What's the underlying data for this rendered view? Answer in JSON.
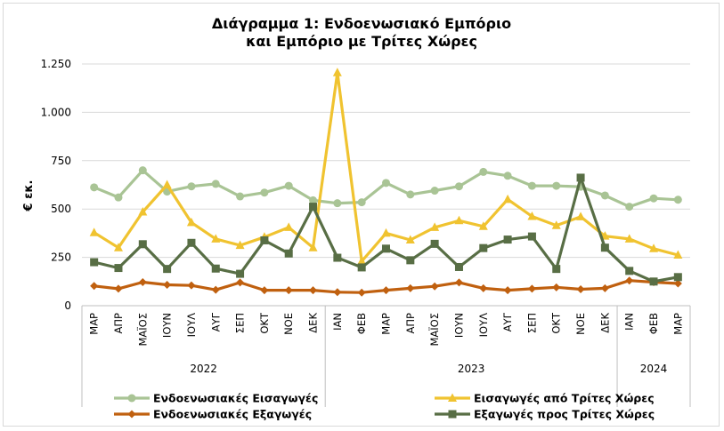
{
  "chart_data": {
    "type": "line",
    "title": [
      "Διάγραμμα 1: Ενδοενωσιακό Εμπόριο",
      "και Εμπόριο με Τρίτες Χώρες"
    ],
    "ylabel": "€ εκ.",
    "ylim": [
      0,
      1250
    ],
    "yticks": [
      0,
      250,
      500,
      750,
      1000,
      1250
    ],
    "ytick_labels": [
      "0",
      "250",
      "500",
      "750",
      "1.000",
      "1.250"
    ],
    "categories": [
      "ΜΑΡ",
      "ΑΠΡ",
      "ΜΑΪΟΣ",
      "ΙΟΥΝ",
      "ΙΟΥΛ",
      "ΑΥΓ",
      "ΣΕΠ",
      "ΟΚΤ",
      "ΝΟΕ",
      "ΔΕΚ",
      "ΙΑΝ",
      "ΦΕΒ",
      "ΜΑΡ",
      "ΑΠΡ",
      "ΜΑΪΟΣ",
      "ΙΟΥΝ",
      "ΙΟΥΛ",
      "ΑΥΓ",
      "ΣΕΠ",
      "ΟΚΤ",
      "ΝΟΕ",
      "ΔΕΚ",
      "ΙΑΝ",
      "ΦΕΒ",
      "ΜΑΡ"
    ],
    "years": [
      {
        "label": "2022",
        "start": 0,
        "end": 9
      },
      {
        "label": "2023",
        "start": 10,
        "end": 21
      },
      {
        "label": "2024",
        "start": 22,
        "end": 24
      }
    ],
    "grid": true,
    "legend_position": "bottom",
    "series": [
      {
        "name": "Ενδοενωσιακές Εισαγωγές",
        "color": "#a9c495",
        "marker": "circle",
        "values": [
          612,
          560,
          700,
          590,
          617,
          630,
          565,
          585,
          620,
          545,
          530,
          535,
          635,
          575,
          595,
          617,
          692,
          672,
          620,
          620,
          615,
          570,
          512,
          555,
          548
        ]
      },
      {
        "name": "Εισαγωγές από Τρίτες Χώρες",
        "color": "#f0c330",
        "marker": "triangle",
        "values": [
          378,
          300,
          485,
          625,
          430,
          345,
          312,
          355,
          405,
          300,
          1205,
          230,
          375,
          340,
          405,
          440,
          410,
          550,
          462,
          415,
          460,
          360,
          345,
          295,
          262
        ]
      },
      {
        "name": "Ενδοενωσιακές Εξαγωγές",
        "color": "#c0600f",
        "marker": "diamond",
        "values": [
          102,
          88,
          122,
          108,
          105,
          82,
          120,
          80,
          80,
          80,
          70,
          68,
          80,
          90,
          100,
          120,
          90,
          80,
          88,
          95,
          85,
          90,
          130,
          122,
          115
        ]
      },
      {
        "name": "Εξαγωγές προς Τρίτες Χώρες",
        "color": "#586e45",
        "marker": "square",
        "values": [
          225,
          195,
          318,
          190,
          325,
          192,
          165,
          338,
          270,
          512,
          248,
          198,
          295,
          235,
          320,
          200,
          298,
          342,
          358,
          190,
          662,
          300,
          180,
          125,
          148
        ]
      }
    ]
  }
}
